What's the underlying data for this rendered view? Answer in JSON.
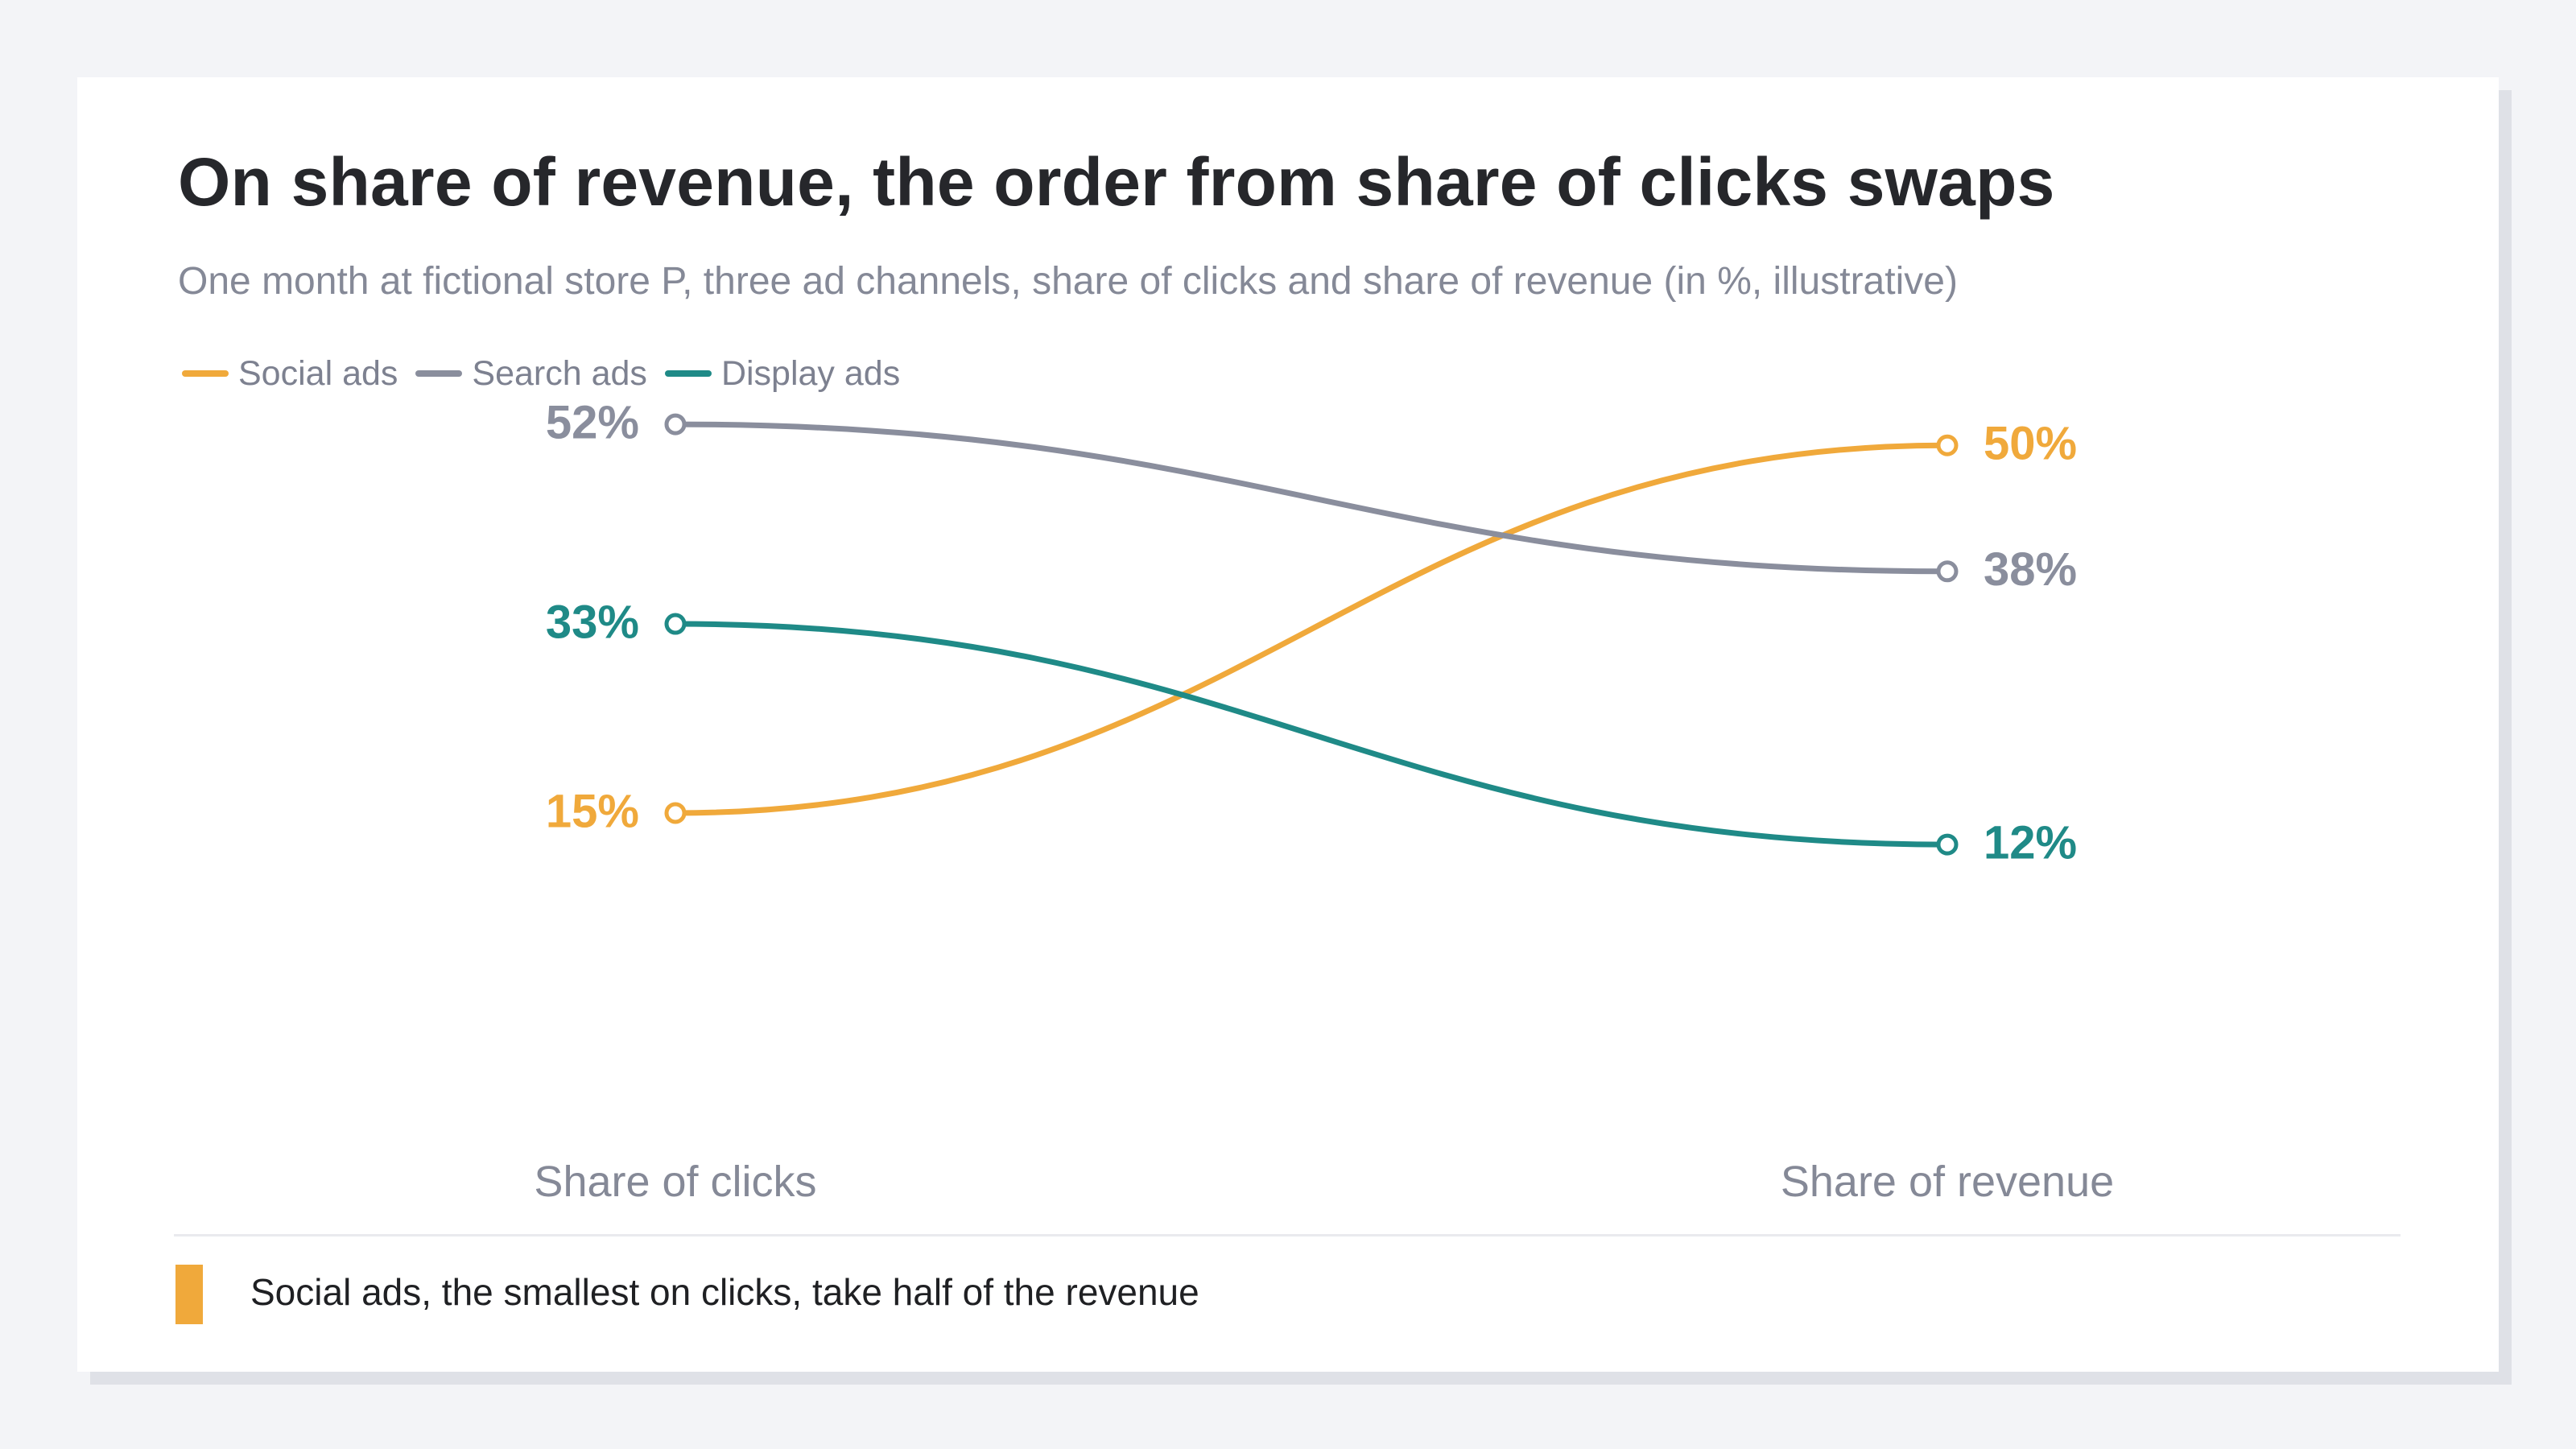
{
  "title": "On share of revenue, the order from share of clicks swaps",
  "subtitle": "One month at fictional store P, three ad channels, share of clicks and share of revenue (in %, illustrative)",
  "note": {
    "text": "Social ads, the smallest on clicks, take half of the revenue",
    "color": "#f0a93b"
  },
  "chart_data": {
    "type": "line",
    "subtype": "slope",
    "categories": [
      "Share of clicks",
      "Share of revenue"
    ],
    "unit": "%",
    "series": [
      {
        "name": "Social ads",
        "values": [
          15,
          50
        ],
        "labels": [
          "15%",
          "50%"
        ],
        "color": "#f0a93b"
      },
      {
        "name": "Search ads",
        "values": [
          52,
          38
        ],
        "labels": [
          "52%",
          "38%"
        ],
        "color": "#8a8e9d"
      },
      {
        "name": "Display ads",
        "values": [
          33,
          12
        ],
        "labels": [
          "33%",
          "12%"
        ],
        "color": "#1f8a87"
      }
    ],
    "legend_position": "top-left",
    "grid": false
  }
}
